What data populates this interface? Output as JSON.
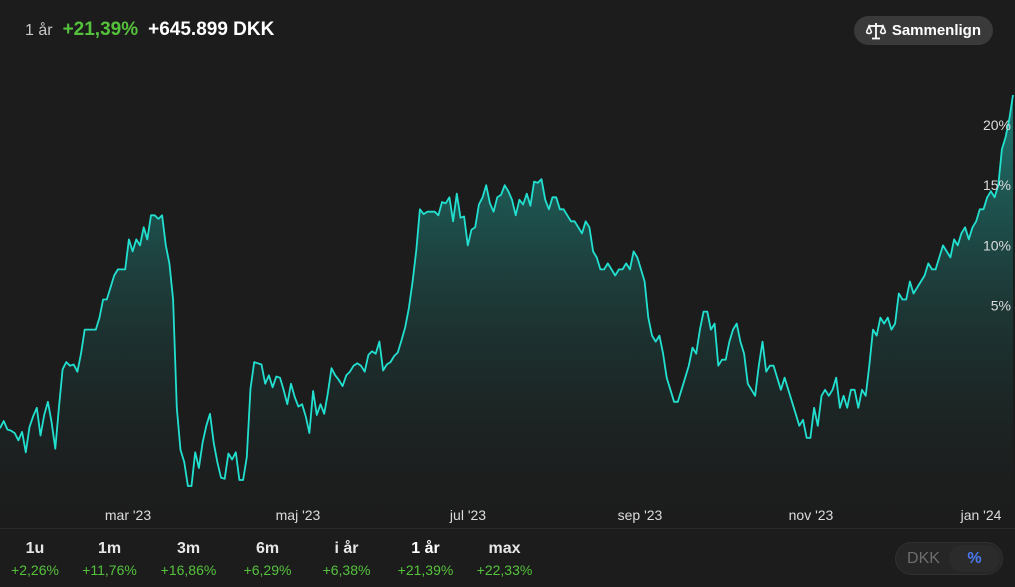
{
  "header": {
    "period": "1 år",
    "change_pct": "+21,39%",
    "change_abs": "+645.899 DKK"
  },
  "compare_button": {
    "label": "Sammenlign",
    "icon": "scale-icon"
  },
  "colors": {
    "line": "#22e0d0",
    "positive": "#55c23c",
    "background": "#1c1c1c",
    "accent_blue": "#4b7bf0"
  },
  "chart_data": {
    "type": "area",
    "x_tick_labels": [
      "mar '23",
      "maj '23",
      "jul '23",
      "sep '23",
      "nov '23",
      "jan '24"
    ],
    "y_tick_labels": [
      "5%",
      "10%",
      "15%",
      "20%"
    ],
    "y_ticks": [
      5,
      10,
      15,
      20
    ],
    "ylim": [
      -10,
      22.5
    ],
    "grid": false,
    "series": [
      {
        "values": [
          -5.2,
          -4.6,
          -5.3,
          -5.4,
          -5.6,
          -6.2,
          -5.5,
          -7.2,
          -5.1,
          -4.2,
          -3.5,
          -5.8,
          -4.1,
          -3.0,
          -4.7,
          -6.9,
          -3.5,
          -0.3,
          0.3,
          0.0,
          0.1,
          -0.5,
          1.0,
          3.0,
          3.0,
          3.0,
          3.0,
          4.0,
          5.5,
          5.5,
          6.5,
          7.5,
          8.0,
          8.0,
          8.0,
          10.5,
          9.5,
          10.5,
          10.0,
          11.5,
          10.5,
          12.5,
          12.5,
          12.2,
          12.5,
          10.0,
          8.5,
          5.5,
          -3.5,
          -7.0,
          -8.0,
          -10.0,
          -10.0,
          -7.2,
          -8.5,
          -6.4,
          -5.0,
          -4.0,
          -6.4,
          -8.0,
          -9.3,
          -9.4,
          -7.3,
          -7.8,
          -7.2,
          -9.5,
          -9.5,
          -7.6,
          -1.9,
          0.3,
          0.2,
          0.1,
          -1.5,
          -0.8,
          -1.8,
          -0.9,
          -1.0,
          -2.0,
          -3.2,
          -1.5,
          -2.6,
          -3.4,
          -3.2,
          -4.2,
          -5.6,
          -2.1,
          -4.1,
          -3.2,
          -4.0,
          -2.3,
          -0.2,
          -0.8,
          -1.2,
          -1.7,
          -0.8,
          -0.5,
          0.0,
          0.2,
          0.0,
          -0.5,
          0.9,
          1.2,
          1.0,
          2.0,
          -0.4,
          0.1,
          0.3,
          0.8,
          1.1,
          2.1,
          3.2,
          4.8,
          7.0,
          9.6,
          13.0,
          12.6,
          12.8,
          12.8,
          12.8,
          12.5,
          13.6,
          13.5,
          14.0,
          12.0,
          14.3,
          12.3,
          12.4,
          10.0,
          11.3,
          11.5,
          13.4,
          14.0,
          15.0,
          13.5,
          12.8,
          14.0,
          14.2,
          15.0,
          14.5,
          13.8,
          12.5,
          13.8,
          13.4,
          14.3,
          13.3,
          15.3,
          15.2,
          15.5,
          13.8,
          13.0,
          14.0,
          14.0,
          13.0,
          13.0,
          12.5,
          12.0,
          12.0,
          11.5,
          11.0,
          12.0,
          11.5,
          9.5,
          9.0,
          8.0,
          8.0,
          8.5,
          8.0,
          7.5,
          8.0,
          8.0,
          8.5,
          8.0,
          9.5,
          9.0,
          8.0,
          7.0,
          4.0,
          2.5,
          2.0,
          2.5,
          1.0,
          -1.0,
          -2.0,
          -3.0,
          -3.0,
          -2.0,
          -1.0,
          0.0,
          1.5,
          1.0,
          3.0,
          4.5,
          4.5,
          3.0,
          3.5,
          0.0,
          0.5,
          0.5,
          2.0,
          3.0,
          3.5,
          2.0,
          1.0,
          -1.5,
          -2.0,
          -2.5,
          0.0,
          2.0,
          -0.5,
          0.0,
          0.0,
          -1.0,
          -2.0,
          -1.0,
          -2.0,
          -3.0,
          -4.0,
          -5.0,
          -4.5,
          -6.0,
          -6.0,
          -3.5,
          -5.0,
          -2.5,
          -2.0,
          -2.5,
          -2.0,
          -1.0,
          -3.5,
          -2.5,
          -3.5,
          -2.0,
          -2.0,
          -3.5,
          -2.0,
          -2.5,
          0.0,
          3.0,
          2.5,
          4.0,
          3.5,
          4.0,
          3.0,
          3.5,
          6.0,
          5.5,
          5.5,
          7.0,
          6.0,
          6.5,
          7.0,
          7.5,
          8.5,
          8.0,
          8.0,
          9.0,
          10.0,
          9.5,
          9.0,
          10.5,
          10.0,
          11.0,
          11.5,
          10.5,
          11.5,
          12.0,
          13.0,
          13.0,
          14.0,
          14.5,
          14.0,
          15.0,
          18.0,
          19.0,
          20.5,
          22.5
        ]
      }
    ]
  },
  "periods": [
    {
      "label": "1u",
      "value": "+2,26%"
    },
    {
      "label": "1m",
      "value": "+11,76%"
    },
    {
      "label": "3m",
      "value": "+16,86%"
    },
    {
      "label": "6m",
      "value": "+6,29%"
    },
    {
      "label": "i år",
      "value": "+6,38%"
    },
    {
      "label": "1 år",
      "value": "+21,39%"
    },
    {
      "label": "max",
      "value": "+22,33%"
    }
  ],
  "active_period": "1 år",
  "unit_toggle": {
    "option_a": "DKK",
    "option_b": "%",
    "selected": "%"
  }
}
